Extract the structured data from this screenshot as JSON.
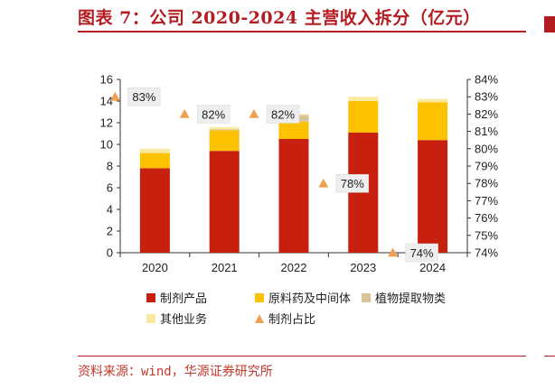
{
  "header": {
    "title": "图表 7：公司 2020-2024 主营收入拆分（亿元）"
  },
  "footer": {
    "source": "资料来源：wind，华源证券研究所"
  },
  "colors": {
    "brand_red": "#b31d22",
    "制剂产品": "#c8200e",
    "原料药及中间体": "#fcc200",
    "植物提取物类": "#d9c39a",
    "其他业务": "#faeaa0",
    "制剂占比": "#f0a050"
  },
  "chart_data": {
    "type": "bar",
    "stacked": true,
    "categories": [
      "2020",
      "2021",
      "2022",
      "2023",
      "2024"
    ],
    "series": [
      {
        "name": "制剂产品",
        "values": [
          7.8,
          9.4,
          10.5,
          11.1,
          10.4
        ]
      },
      {
        "name": "原料药及中间体",
        "values": [
          1.4,
          1.9,
          1.6,
          2.9,
          3.5
        ]
      },
      {
        "name": "植物提取物类",
        "values": [
          0.0,
          0.1,
          0.6,
          0.0,
          0.0
        ]
      },
      {
        "name": "其他业务",
        "values": [
          0.4,
          0.2,
          0.1,
          0.4,
          0.3
        ]
      }
    ],
    "line_series": {
      "name": "制剂占比",
      "axis": "right",
      "values": [
        0.83,
        0.82,
        0.82,
        0.78,
        0.74
      ],
      "labels": [
        "83%",
        "82%",
        "82%",
        "78%",
        "74%"
      ]
    },
    "y_left": {
      "min": 0,
      "max": 16,
      "step": 2,
      "ticks": [
        "0",
        "2",
        "4",
        "6",
        "8",
        "10",
        "12",
        "14",
        "16"
      ]
    },
    "y_right": {
      "min": 0.74,
      "max": 0.84,
      "step": 0.01,
      "ticks": [
        "74%",
        "75%",
        "76%",
        "77%",
        "78%",
        "79%",
        "80%",
        "81%",
        "82%",
        "83%",
        "84%"
      ]
    },
    "legend": {
      "placement": "bottom",
      "items": [
        {
          "label": "制剂产品",
          "type": "square"
        },
        {
          "label": "原料药及中间体",
          "type": "square"
        },
        {
          "label": "植物提取物类",
          "type": "square"
        },
        {
          "label": "其他业务",
          "type": "square"
        },
        {
          "label": "制剂占比",
          "type": "triangle"
        }
      ]
    },
    "grid": false
  }
}
